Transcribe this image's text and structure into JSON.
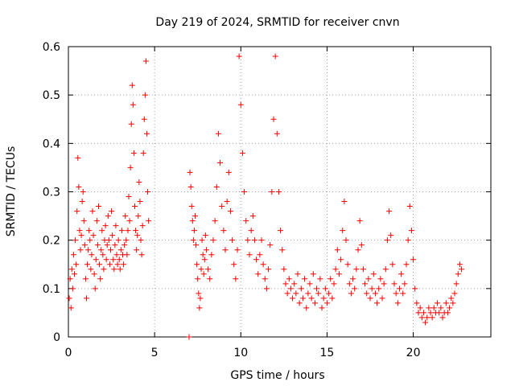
{
  "chart_data": {
    "type": "scatter",
    "title": "Day 219 of 2024, SRMTID for receiver cnvn",
    "xlabel": "GPS time / hours",
    "ylabel": "SRMTID / TECUs",
    "xlim": [
      0,
      24.5
    ],
    "ylim": [
      0,
      0.6
    ],
    "xticks": [
      0,
      5,
      10,
      15,
      20
    ],
    "xtick_labels": [
      "0",
      "5",
      "10",
      "15",
      "20"
    ],
    "yticks": [
      0,
      0.1,
      0.2,
      0.3,
      0.4,
      0.5,
      0.6
    ],
    "ytick_labels": [
      "0",
      "0.1",
      "0.2",
      "0.3",
      "0.4",
      "0.5",
      "0.6"
    ],
    "grid": true,
    "marker": "+",
    "color": "#ff0000",
    "series": [
      {
        "name": "SRMTID",
        "points": [
          [
            0.05,
            0.08
          ],
          [
            0.1,
            0.12
          ],
          [
            0.15,
            0.06
          ],
          [
            0.2,
            0.14
          ],
          [
            0.25,
            0.1
          ],
          [
            0.3,
            0.17
          ],
          [
            0.35,
            0.13
          ],
          [
            0.4,
            0.2
          ],
          [
            0.45,
            0.15
          ],
          [
            0.5,
            0.26
          ],
          [
            0.55,
            0.37
          ],
          [
            0.6,
            0.31
          ],
          [
            0.65,
            0.22
          ],
          [
            0.7,
            0.18
          ],
          [
            0.75,
            0.21
          ],
          [
            0.8,
            0.28
          ],
          [
            0.85,
            0.3
          ],
          [
            0.9,
            0.24
          ],
          [
            0.95,
            0.19
          ],
          [
            1.0,
            0.12
          ],
          [
            1.05,
            0.08
          ],
          [
            1.1,
            0.15
          ],
          [
            1.15,
            0.18
          ],
          [
            1.2,
            0.22
          ],
          [
            1.25,
            0.2
          ],
          [
            1.3,
            0.14
          ],
          [
            1.35,
            0.17
          ],
          [
            1.4,
            0.26
          ],
          [
            1.45,
            0.21
          ],
          [
            1.5,
            0.13
          ],
          [
            1.55,
            0.1
          ],
          [
            1.6,
            0.16
          ],
          [
            1.65,
            0.24
          ],
          [
            1.7,
            0.19
          ],
          [
            1.75,
            0.27
          ],
          [
            1.8,
            0.15
          ],
          [
            1.85,
            0.12
          ],
          [
            1.9,
            0.18
          ],
          [
            1.95,
            0.22
          ],
          [
            2.0,
            0.17
          ],
          [
            2.05,
            0.14
          ],
          [
            2.1,
            0.2
          ],
          [
            2.15,
            0.23
          ],
          [
            2.2,
            0.16
          ],
          [
            2.25,
            0.19
          ],
          [
            2.3,
            0.25
          ],
          [
            2.35,
            0.2
          ],
          [
            2.4,
            0.15
          ],
          [
            2.45,
            0.18
          ],
          [
            2.5,
            0.26
          ],
          [
            2.55,
            0.21
          ],
          [
            2.6,
            0.16
          ],
          [
            2.65,
            0.14
          ],
          [
            2.7,
            0.19
          ],
          [
            2.75,
            0.23
          ],
          [
            2.8,
            0.17
          ],
          [
            2.85,
            0.15
          ],
          [
            2.9,
            0.2
          ],
          [
            2.95,
            0.16
          ],
          [
            3.0,
            0.14
          ],
          [
            3.05,
            0.18
          ],
          [
            3.1,
            0.22
          ],
          [
            3.15,
            0.17
          ],
          [
            3.2,
            0.15
          ],
          [
            3.25,
            0.19
          ],
          [
            3.3,
            0.25
          ],
          [
            3.35,
            0.2
          ],
          [
            3.4,
            0.17
          ],
          [
            3.45,
            0.22
          ],
          [
            3.5,
            0.29
          ],
          [
            3.55,
            0.24
          ],
          [
            3.6,
            0.35
          ],
          [
            3.65,
            0.44
          ],
          [
            3.7,
            0.52
          ],
          [
            3.75,
            0.48
          ],
          [
            3.8,
            0.38
          ],
          [
            3.85,
            0.27
          ],
          [
            3.9,
            0.22
          ],
          [
            3.95,
            0.18
          ],
          [
            4.0,
            0.21
          ],
          [
            4.05,
            0.25
          ],
          [
            4.1,
            0.32
          ],
          [
            4.15,
            0.28
          ],
          [
            4.2,
            0.2
          ],
          [
            4.25,
            0.17
          ],
          [
            4.3,
            0.23
          ],
          [
            4.35,
            0.38
          ],
          [
            4.4,
            0.45
          ],
          [
            4.45,
            0.5
          ],
          [
            4.5,
            0.57
          ],
          [
            4.55,
            0.42
          ],
          [
            4.6,
            0.3
          ],
          [
            4.65,
            0.24
          ],
          [
            7.0,
            0.0
          ],
          [
            7.05,
            0.34
          ],
          [
            7.1,
            0.31
          ],
          [
            7.15,
            0.27
          ],
          [
            7.2,
            0.24
          ],
          [
            7.25,
            0.2
          ],
          [
            7.3,
            0.22
          ],
          [
            7.35,
            0.25
          ],
          [
            7.4,
            0.19
          ],
          [
            7.45,
            0.15
          ],
          [
            7.5,
            0.12
          ],
          [
            7.55,
            0.09
          ],
          [
            7.6,
            0.06
          ],
          [
            7.65,
            0.08
          ],
          [
            7.7,
            0.14
          ],
          [
            7.75,
            0.2
          ],
          [
            7.8,
            0.17
          ],
          [
            7.85,
            0.13
          ],
          [
            7.9,
            0.16
          ],
          [
            7.95,
            0.21
          ],
          [
            8.0,
            0.18
          ],
          [
            8.1,
            0.14
          ],
          [
            8.2,
            0.12
          ],
          [
            8.3,
            0.17
          ],
          [
            8.4,
            0.2
          ],
          [
            8.5,
            0.24
          ],
          [
            8.6,
            0.31
          ],
          [
            8.7,
            0.42
          ],
          [
            8.8,
            0.36
          ],
          [
            8.9,
            0.27
          ],
          [
            9.0,
            0.22
          ],
          [
            9.1,
            0.18
          ],
          [
            9.2,
            0.28
          ],
          [
            9.3,
            0.34
          ],
          [
            9.4,
            0.26
          ],
          [
            9.5,
            0.2
          ],
          [
            9.6,
            0.15
          ],
          [
            9.7,
            0.12
          ],
          [
            9.8,
            0.18
          ],
          [
            9.9,
            0.58
          ],
          [
            10.0,
            0.48
          ],
          [
            10.1,
            0.38
          ],
          [
            10.2,
            0.3
          ],
          [
            10.3,
            0.24
          ],
          [
            10.4,
            0.2
          ],
          [
            10.5,
            0.17
          ],
          [
            10.6,
            0.22
          ],
          [
            10.7,
            0.25
          ],
          [
            10.8,
            0.2
          ],
          [
            10.9,
            0.16
          ],
          [
            11.0,
            0.13
          ],
          [
            11.1,
            0.17
          ],
          [
            11.2,
            0.2
          ],
          [
            11.3,
            0.15
          ],
          [
            11.4,
            0.12
          ],
          [
            11.5,
            0.1
          ],
          [
            11.6,
            0.14
          ],
          [
            11.7,
            0.19
          ],
          [
            11.8,
            0.3
          ],
          [
            11.9,
            0.45
          ],
          [
            12.0,
            0.58
          ],
          [
            12.1,
            0.42
          ],
          [
            12.2,
            0.3
          ],
          [
            12.3,
            0.22
          ],
          [
            12.4,
            0.18
          ],
          [
            12.5,
            0.14
          ],
          [
            12.6,
            0.11
          ],
          [
            12.7,
            0.09
          ],
          [
            12.8,
            0.12
          ],
          [
            12.9,
            0.1
          ],
          [
            13.0,
            0.08
          ],
          [
            13.1,
            0.11
          ],
          [
            13.2,
            0.09
          ],
          [
            13.3,
            0.13
          ],
          [
            13.4,
            0.07
          ],
          [
            13.5,
            0.1
          ],
          [
            13.6,
            0.08
          ],
          [
            13.7,
            0.12
          ],
          [
            13.8,
            0.06
          ],
          [
            13.9,
            0.09
          ],
          [
            14.0,
            0.11
          ],
          [
            14.1,
            0.08
          ],
          [
            14.2,
            0.13
          ],
          [
            14.3,
            0.07
          ],
          [
            14.4,
            0.1
          ],
          [
            14.5,
            0.09
          ],
          [
            14.6,
            0.12
          ],
          [
            14.7,
            0.06
          ],
          [
            14.8,
            0.08
          ],
          [
            14.9,
            0.1
          ],
          [
            15.0,
            0.07
          ],
          [
            15.1,
            0.09
          ],
          [
            15.2,
            0.12
          ],
          [
            15.3,
            0.08
          ],
          [
            15.4,
            0.11
          ],
          [
            15.5,
            0.14
          ],
          [
            15.6,
            0.18
          ],
          [
            15.7,
            0.13
          ],
          [
            15.8,
            0.16
          ],
          [
            15.9,
            0.22
          ],
          [
            16.0,
            0.28
          ],
          [
            16.1,
            0.2
          ],
          [
            16.2,
            0.15
          ],
          [
            16.3,
            0.11
          ],
          [
            16.4,
            0.09
          ],
          [
            16.5,
            0.12
          ],
          [
            16.6,
            0.1
          ],
          [
            16.7,
            0.14
          ],
          [
            16.8,
            0.18
          ],
          [
            16.9,
            0.24
          ],
          [
            17.0,
            0.19
          ],
          [
            17.1,
            0.14
          ],
          [
            17.2,
            0.11
          ],
          [
            17.3,
            0.09
          ],
          [
            17.4,
            0.12
          ],
          [
            17.5,
            0.08
          ],
          [
            17.6,
            0.1
          ],
          [
            17.7,
            0.13
          ],
          [
            17.8,
            0.09
          ],
          [
            17.9,
            0.07
          ],
          [
            18.0,
            0.1
          ],
          [
            18.1,
            0.12
          ],
          [
            18.2,
            0.08
          ],
          [
            18.3,
            0.11
          ],
          [
            18.4,
            0.14
          ],
          [
            18.5,
            0.2
          ],
          [
            18.6,
            0.26
          ],
          [
            18.7,
            0.21
          ],
          [
            18.8,
            0.15
          ],
          [
            18.9,
            0.11
          ],
          [
            19.0,
            0.09
          ],
          [
            19.1,
            0.07
          ],
          [
            19.2,
            0.1
          ],
          [
            19.3,
            0.13
          ],
          [
            19.4,
            0.09
          ],
          [
            19.5,
            0.11
          ],
          [
            19.6,
            0.15
          ],
          [
            19.7,
            0.2
          ],
          [
            19.8,
            0.27
          ],
          [
            19.9,
            0.22
          ],
          [
            20.0,
            0.16
          ],
          [
            20.1,
            0.1
          ],
          [
            20.2,
            0.07
          ],
          [
            20.3,
            0.05
          ],
          [
            20.4,
            0.06
          ],
          [
            20.5,
            0.04
          ],
          [
            20.6,
            0.05
          ],
          [
            20.7,
            0.03
          ],
          [
            20.8,
            0.04
          ],
          [
            20.9,
            0.06
          ],
          [
            21.0,
            0.05
          ],
          [
            21.1,
            0.04
          ],
          [
            21.2,
            0.06
          ],
          [
            21.3,
            0.05
          ],
          [
            21.4,
            0.07
          ],
          [
            21.5,
            0.05
          ],
          [
            21.6,
            0.06
          ],
          [
            21.7,
            0.04
          ],
          [
            21.8,
            0.05
          ],
          [
            21.9,
            0.07
          ],
          [
            22.0,
            0.05
          ],
          [
            22.1,
            0.06
          ],
          [
            22.2,
            0.08
          ],
          [
            22.3,
            0.07
          ],
          [
            22.4,
            0.09
          ],
          [
            22.5,
            0.11
          ],
          [
            22.6,
            0.13
          ],
          [
            22.7,
            0.15
          ],
          [
            22.8,
            0.14
          ]
        ]
      }
    ]
  }
}
